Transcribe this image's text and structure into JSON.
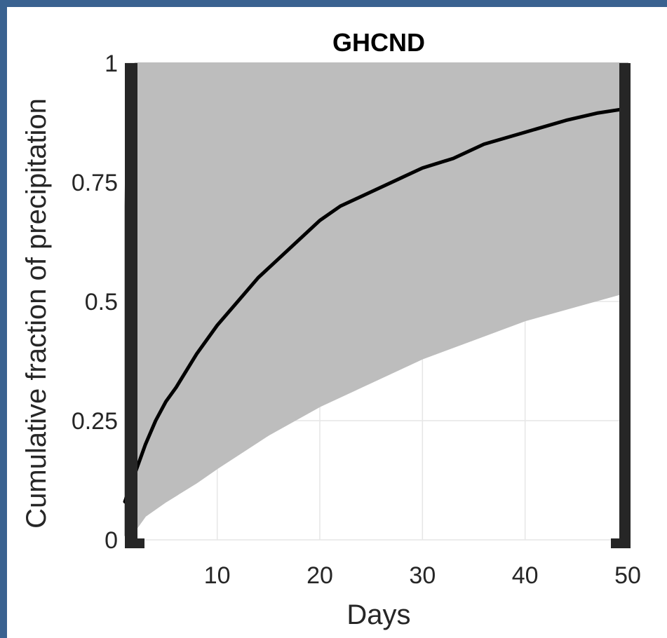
{
  "window_bg": "#3a6290",
  "chart_data": {
    "type": "line",
    "title": "GHCND",
    "xlabel": "Days",
    "ylabel": "Cumulative fraction of precipitation",
    "xlim": [
      1,
      50
    ],
    "ylim": [
      0,
      1
    ],
    "xticks": [
      10,
      20,
      30,
      40,
      50
    ],
    "yticks": [
      0,
      0.25,
      0.5,
      0.75,
      1
    ],
    "ytick_labels": [
      "0",
      "0.25",
      "0.5",
      "0.75",
      "1"
    ],
    "grid": true,
    "envelope": {
      "color": "#bdbdbd",
      "upper": {
        "x": [
          1,
          1.3,
          1.6,
          2,
          2.5,
          3,
          50
        ],
        "y": [
          0.7,
          0.9,
          0.98,
          1.0,
          1.0,
          1.0,
          1.0
        ]
      },
      "lower": {
        "x": [
          1,
          2,
          3,
          5,
          8,
          10,
          15,
          20,
          25,
          30,
          35,
          40,
          45,
          50
        ],
        "y": [
          0.01,
          0.02,
          0.05,
          0.08,
          0.12,
          0.15,
          0.22,
          0.28,
          0.33,
          0.38,
          0.42,
          0.46,
          0.49,
          0.52
        ]
      }
    },
    "series": [
      {
        "color": "#000000",
        "x": [
          1,
          2,
          3,
          4,
          5,
          6,
          8,
          10,
          12,
          14,
          16,
          18,
          20,
          22,
          25,
          28,
          30,
          33,
          36,
          40,
          44,
          47,
          50
        ],
        "y": [
          0.08,
          0.14,
          0.2,
          0.25,
          0.29,
          0.32,
          0.39,
          0.45,
          0.5,
          0.55,
          0.59,
          0.63,
          0.67,
          0.7,
          0.73,
          0.76,
          0.78,
          0.8,
          0.83,
          0.855,
          0.88,
          0.895,
          0.905
        ]
      }
    ]
  }
}
